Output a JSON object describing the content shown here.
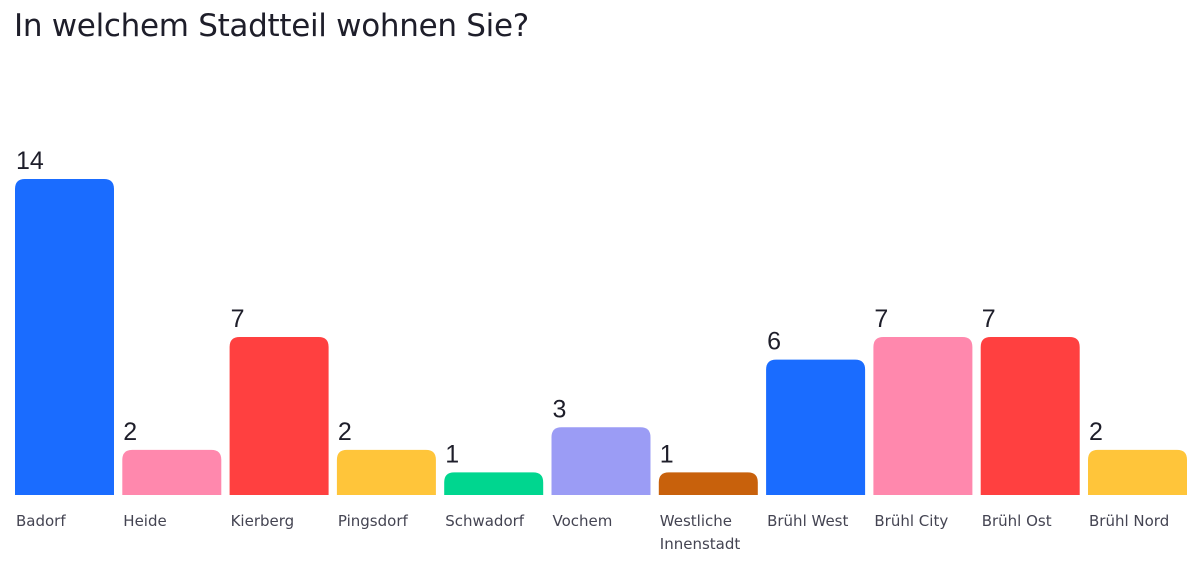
{
  "chart_data": {
    "type": "bar",
    "title": "In welchem Stadtteil wohnen Sie?",
    "categories": [
      "Badorf",
      "Heide",
      "Kierberg",
      "Pingsdorf",
      "Schwadorf",
      "Vochem",
      "Westliche Innenstadt",
      "Brühl West",
      "Brühl City",
      "Brühl Ost",
      "Brühl Nord"
    ],
    "values": [
      14,
      2,
      7,
      2,
      1,
      3,
      1,
      6,
      7,
      7,
      2
    ],
    "colors": [
      "#1a6cff",
      "#ff88ad",
      "#ff4040",
      "#ffc53a",
      "#00d68f",
      "#9b9cf5",
      "#c8610c",
      "#1a6cff",
      "#ff88ad",
      "#ff4040",
      "#ffc53a"
    ],
    "xlabel": "",
    "ylabel": "",
    "ylim": [
      0,
      14
    ],
    "grid": false,
    "data_labels": true
  }
}
